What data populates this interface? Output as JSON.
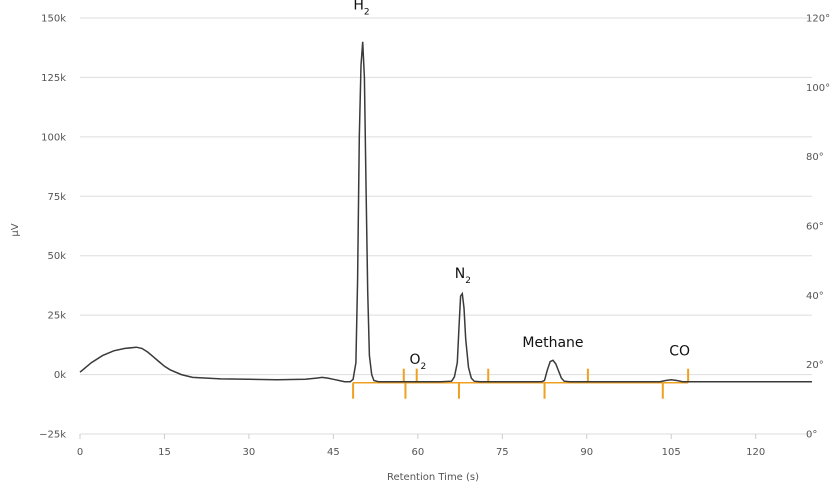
{
  "chart_data": {
    "type": "line",
    "title": "",
    "xlabel": "Retention Time (s)",
    "ylabel": "µV",
    "xlim": [
      0,
      130
    ],
    "ylim": [
      -25000,
      150000
    ],
    "y2lim": [
      0,
      120
    ],
    "grid": true,
    "xticks": [
      "0",
      "15",
      "30",
      "45",
      "60",
      "75",
      "90",
      "105",
      "120"
    ],
    "yticks": [
      "−25k",
      "0k",
      "25k",
      "50k",
      "75k",
      "100k",
      "125k",
      "150k"
    ],
    "y2ticks": [
      "0°",
      "20°",
      "40°",
      "60°",
      "80°",
      "100°",
      "120°"
    ],
    "colors": {
      "signal": "#3a3a3a",
      "markers": "#f0a020",
      "grid": "#dddddd"
    },
    "series": [
      {
        "x": [
          0,
          2,
          4,
          6,
          8,
          10,
          11,
          12,
          13,
          14,
          15,
          16,
          18,
          20,
          25,
          30,
          35,
          40,
          42,
          43,
          44,
          45,
          46,
          47,
          48,
          48.5,
          49,
          49.3,
          49.6,
          49.9,
          50.2,
          50.5,
          50.8,
          51.1,
          51.4,
          51.8,
          52.2,
          53,
          55,
          60,
          64,
          66,
          66.5,
          67,
          67.3,
          67.6,
          67.9,
          68.2,
          68.5,
          69,
          69.5,
          70,
          71,
          73,
          78,
          82,
          82.5,
          83,
          83.5,
          84,
          84.5,
          85,
          85.5,
          86,
          87,
          90,
          100,
          103,
          104,
          105,
          106,
          107,
          110,
          120,
          130
        ],
        "y": [
          1000,
          5000,
          8000,
          10000,
          11000,
          11500,
          11000,
          9500,
          7500,
          5500,
          3500,
          2000,
          0,
          -1200,
          -1800,
          -2000,
          -2200,
          -2000,
          -1500,
          -1200,
          -1500,
          -2000,
          -2500,
          -3000,
          -3000,
          -2000,
          5000,
          40000,
          100000,
          130000,
          140000,
          125000,
          80000,
          35000,
          8000,
          0,
          -2500,
          -3000,
          -3000,
          -3000,
          -3000,
          -2800,
          -1000,
          5000,
          20000,
          33000,
          34000,
          28000,
          15000,
          3000,
          -1500,
          -2800,
          -3000,
          -3000,
          -3000,
          -3000,
          -2500,
          2000,
          5500,
          6000,
          4500,
          1500,
          -1500,
          -2800,
          -3000,
          -3000,
          -3000,
          -3000,
          -2500,
          -2200,
          -2500,
          -3000,
          -3000,
          -3000,
          -3000
        ]
      }
    ],
    "integration_markers": [
      {
        "x": 48.5,
        "dir": "down"
      },
      {
        "x": 57.5,
        "dir": "up"
      },
      {
        "x": 57.8,
        "dir": "down"
      },
      {
        "x": 59.8,
        "dir": "up"
      },
      {
        "x": 67.3,
        "dir": "down"
      },
      {
        "x": 72.5,
        "dir": "up"
      },
      {
        "x": 82.5,
        "dir": "down"
      },
      {
        "x": 90.2,
        "dir": "up"
      },
      {
        "x": 103.5,
        "dir": "down"
      },
      {
        "x": 108,
        "dir": "up"
      }
    ],
    "annotations": [
      {
        "text": "H",
        "sub": "2",
        "x": 50,
        "y": 151000
      },
      {
        "text": "O",
        "sub": "2",
        "x": 60,
        "y": 2000
      },
      {
        "text": "N",
        "sub": "2",
        "x": 68,
        "y": 38000
      },
      {
        "text": "Methane",
        "sub": "",
        "x": 84,
        "y": 9000
      },
      {
        "text": "CO",
        "sub": "",
        "x": 106.5,
        "y": 5500
      }
    ]
  }
}
